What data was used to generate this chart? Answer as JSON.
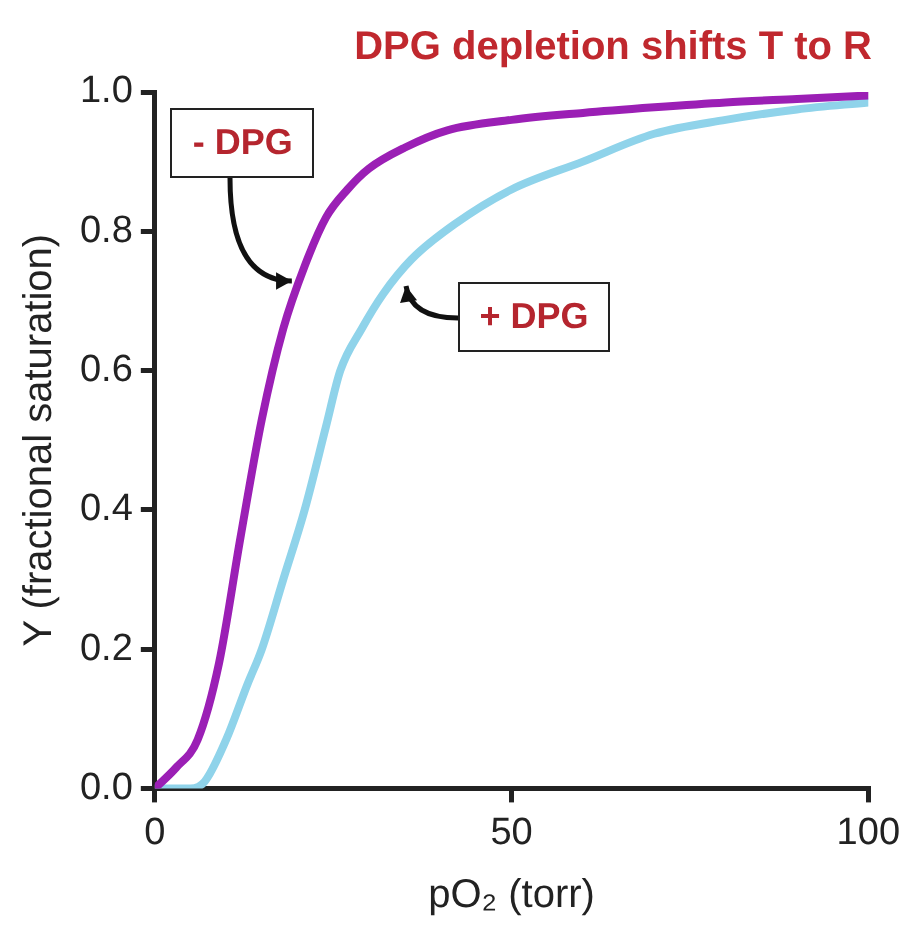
{
  "chart_data": {
    "type": "line",
    "title": "DPG depletion shifts T to R",
    "xlabel": "pO₂ (torr)",
    "ylabel": "Y (fractional saturation)",
    "xlim": [
      0,
      100
    ],
    "xticks": [
      0,
      50,
      100
    ],
    "ylim": [
      0,
      1
    ],
    "yticks": [
      {
        "value": 0,
        "label": "0.0"
      },
      {
        "value": 0.2,
        "label": "0.2"
      },
      {
        "value": 0.4,
        "label": "0.4"
      },
      {
        "value": 0.6,
        "label": "0.6"
      },
      {
        "value": 0.8,
        "label": "0.8"
      },
      {
        "value": 1,
        "label": "1.0"
      }
    ],
    "grid": false,
    "legend": false,
    "marker": "none",
    "line_style": "solid",
    "series": [
      {
        "color": "#9b1fb5",
        "x": [
          0,
          3,
          6,
          9,
          12,
          15,
          18,
          21,
          24,
          27,
          30,
          35,
          41,
          50,
          60,
          70,
          80,
          90,
          100
        ],
        "values": [
          0,
          0.03,
          0.07,
          0.18,
          0.36,
          0.53,
          0.66,
          0.75,
          0.82,
          0.86,
          0.89,
          0.92,
          0.945,
          0.96,
          0.97,
          0.978,
          0.985,
          0.99,
          0.995
        ]
      },
      {
        "color": "#8fd3ea",
        "x": [
          0,
          5,
          7,
          10,
          13,
          15,
          18,
          21,
          24,
          26,
          29,
          32,
          36,
          42,
          50,
          60,
          70,
          80,
          90,
          100
        ],
        "values": [
          0,
          0,
          0.01,
          0.07,
          0.15,
          0.2,
          0.3,
          0.4,
          0.52,
          0.6,
          0.66,
          0.71,
          0.76,
          0.81,
          0.86,
          0.9,
          0.94,
          0.96,
          0.975,
          0.985
        ]
      }
    ],
    "annotations": [
      {
        "text": "- DPG",
        "x": 21,
        "y": 0.74
      },
      {
        "text": "+ DPG",
        "x": 34,
        "y": 0.74
      }
    ]
  }
}
